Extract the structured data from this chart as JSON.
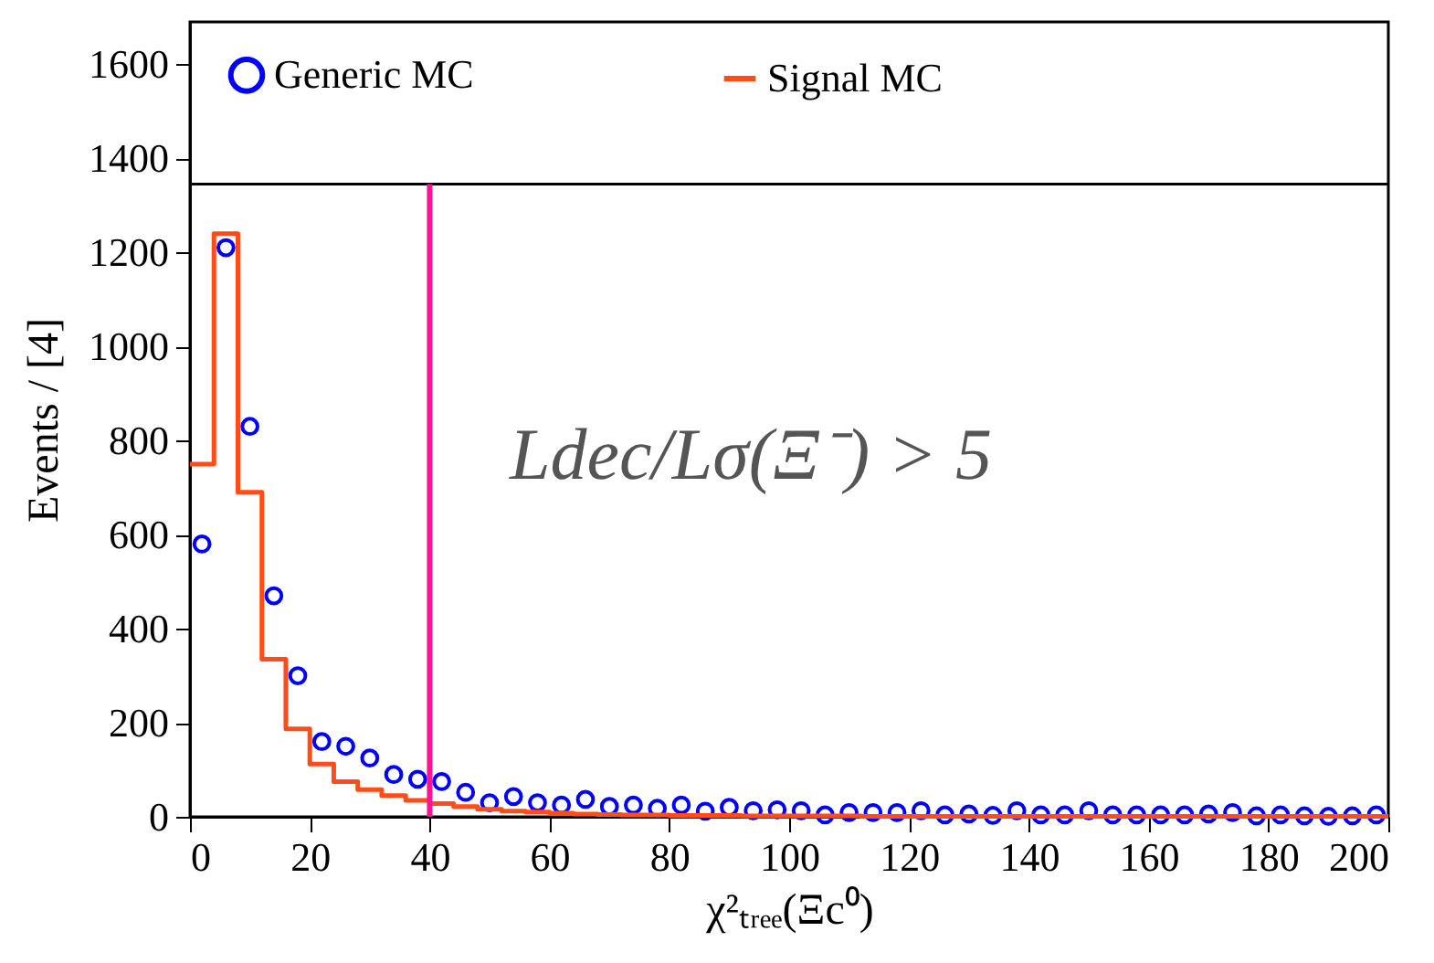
{
  "chart_data": {
    "type": "histogram",
    "xlabel": "χ²ₜᵣₑₑ(Ξc⁰)",
    "ylabel": "Events / [4]",
    "bins": [
      0,
      4,
      8,
      12,
      16,
      20,
      24,
      28,
      32,
      36,
      40,
      44,
      48,
      52,
      56,
      60,
      64,
      68,
      72,
      76,
      80,
      84,
      88,
      92,
      96,
      100,
      104,
      108,
      112,
      116,
      120,
      124,
      128,
      132,
      136,
      140,
      144,
      148,
      152,
      156,
      160,
      164,
      168,
      172,
      176,
      180,
      184,
      188,
      192,
      196,
      200
    ],
    "series": [
      {
        "name": "Generic MC",
        "type": "scatter",
        "color": "#0000ff",
        "marker": "circle",
        "x": [
          2,
          6,
          10,
          14,
          18,
          22,
          26,
          30,
          34,
          38,
          42,
          46,
          50,
          54,
          58,
          62,
          66,
          70,
          74,
          78,
          82,
          86,
          90,
          94,
          98,
          102,
          106,
          110,
          114,
          118,
          122,
          126,
          130,
          134,
          138,
          142,
          146,
          150,
          154,
          158,
          162,
          166,
          170,
          174,
          178,
          182,
          186,
          190,
          194,
          198
        ],
        "values": [
          580,
          1210,
          830,
          470,
          300,
          160,
          150,
          125,
          90,
          80,
          75,
          52,
          30,
          43,
          30,
          25,
          37,
          22,
          25,
          18,
          25,
          12,
          20,
          13,
          15,
          13,
          4,
          9,
          9,
          9,
          13,
          4,
          6,
          3,
          13,
          4,
          4,
          13,
          4,
          4,
          4,
          4,
          6,
          9,
          2,
          4,
          2,
          1,
          2,
          4
        ]
      },
      {
        "name": "Signal MC",
        "color": "#ff4d1a",
        "values": [
          750,
          1240,
          690,
          335,
          187,
          112,
          75,
          58,
          45,
          35,
          28,
          22,
          16,
          12,
          10,
          8,
          6,
          5,
          4,
          4,
          3,
          3,
          3,
          2,
          2,
          2,
          2,
          2,
          1,
          1,
          1,
          1,
          1,
          1,
          1,
          1,
          1,
          1,
          1,
          1,
          1,
          1,
          1,
          1,
          1,
          1,
          1,
          1,
          1,
          1
        ]
      }
    ],
    "xlim": [
      0,
      200
    ],
    "xticks": [
      0,
      20,
      40,
      60,
      80,
      100,
      120,
      140,
      160,
      180,
      200
    ],
    "ylim": [
      0,
      1690
    ],
    "yticks": [
      0,
      200,
      400,
      600,
      800,
      1000,
      1200,
      1400,
      1600
    ],
    "ref_lines": [
      {
        "axis": "y",
        "value": 1345,
        "color": "#000000"
      },
      {
        "axis": "x",
        "value": 40,
        "color": "#ff1493"
      }
    ],
    "annotations": [
      "Ldec/Lσ(Ξ⁻) > 5"
    ],
    "legend": "top",
    "grid": false
  }
}
